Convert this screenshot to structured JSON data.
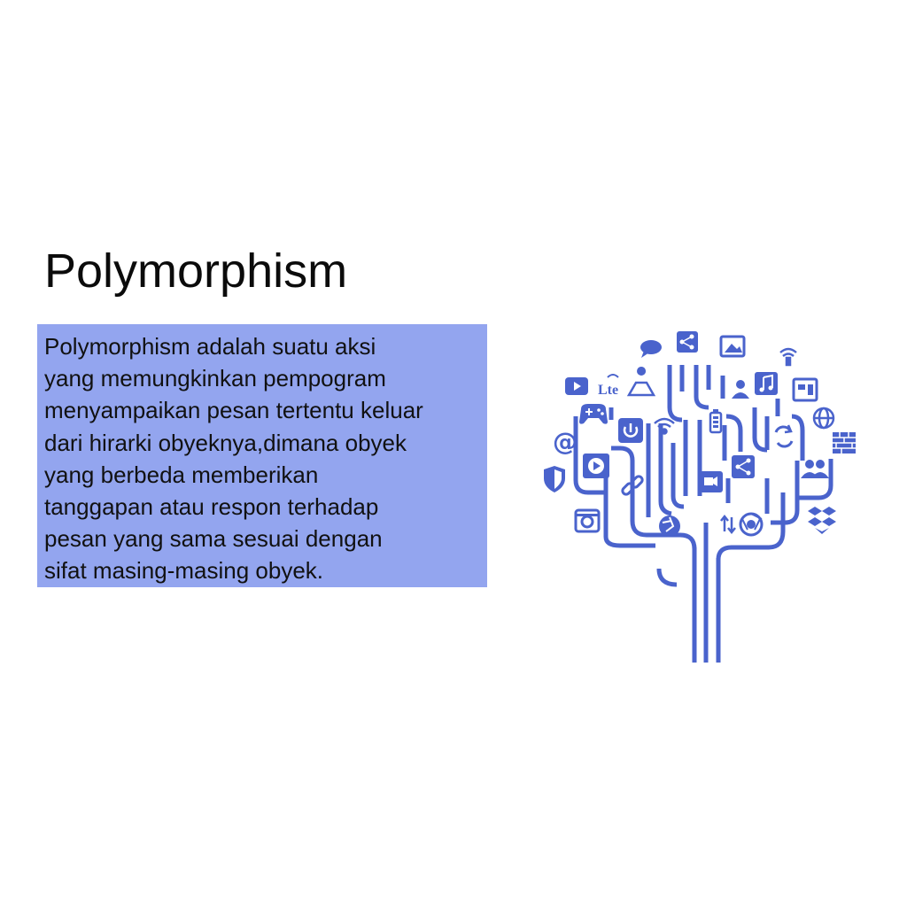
{
  "slide": {
    "title": "Polymorphism",
    "body_lines": [
      "Polymorphism adalah suatu aksi",
      "yang memungkinkan pempogram",
      "menyampaikan pesan tertentu keluar",
      "dari hirarki obyeknya,dimana obyek",
      "yang berbeda memberikan",
      "tanggapan atau respon terhadap",
      "pesan yang sama sesuai dengan",
      "sifat masing-masing obyek."
    ],
    "text_box_color": "#93a5ef"
  },
  "illustration": {
    "color": "#4a63cc",
    "lte_label": "Lte",
    "icons": [
      "share-icon",
      "speech-bubble-icon",
      "image-icon",
      "wifi-icon",
      "youtube-icon",
      "map-pin-icon",
      "user-icon",
      "music-note-icon",
      "safe-icon",
      "gamepad-icon",
      "power-icon",
      "battery-icon",
      "globe-icon",
      "at-sign-icon",
      "refresh-icon",
      "brick-wall-icon",
      "shield-icon",
      "play-icon",
      "share-icon",
      "group-icon",
      "link-icon",
      "video-camera-icon",
      "camera-icon",
      "aperture-icon",
      "transfer-arrows-icon",
      "chrome-icon",
      "dropbox-icon"
    ]
  }
}
